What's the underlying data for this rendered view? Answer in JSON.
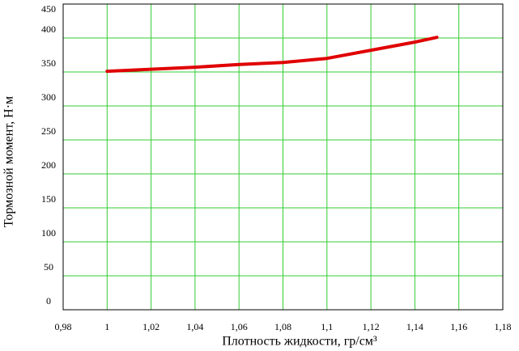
{
  "chart_data": {
    "type": "line",
    "xlabel": "Плотность жидкости, гр/см³",
    "ylabel": "Тормозной момент, Н·м",
    "x": [
      1.0,
      1.02,
      1.04,
      1.06,
      1.08,
      1.1,
      1.12,
      1.14,
      1.15
    ],
    "series": [
      {
        "name": null,
        "color": "#e00000",
        "values": [
          351,
          354,
          357,
          361,
          364,
          370,
          382,
          394,
          401
        ]
      }
    ],
    "xlim": [
      0.98,
      1.18
    ],
    "xticks": [
      {
        "value": 0.98,
        "label": "0,98"
      },
      1,
      {
        "value": 1.02,
        "label": "1,02"
      },
      {
        "value": 1.04,
        "label": "1,04"
      },
      {
        "value": 1.06,
        "label": "1,06"
      },
      {
        "value": 1.08,
        "label": "1,08"
      },
      {
        "value": 1.1,
        "label": "1,1"
      },
      {
        "value": 1.12,
        "label": "1,12"
      },
      {
        "value": 1.14,
        "label": "1,14"
      },
      {
        "value": 1.16,
        "label": "1,16"
      },
      {
        "value": 1.18,
        "label": "1,18"
      }
    ],
    "ylim": [
      0,
      450
    ],
    "yticks": [
      0,
      50,
      100,
      150,
      200,
      250,
      300,
      350,
      400,
      450
    ],
    "grid": true,
    "grid_color": "#33cc33"
  }
}
